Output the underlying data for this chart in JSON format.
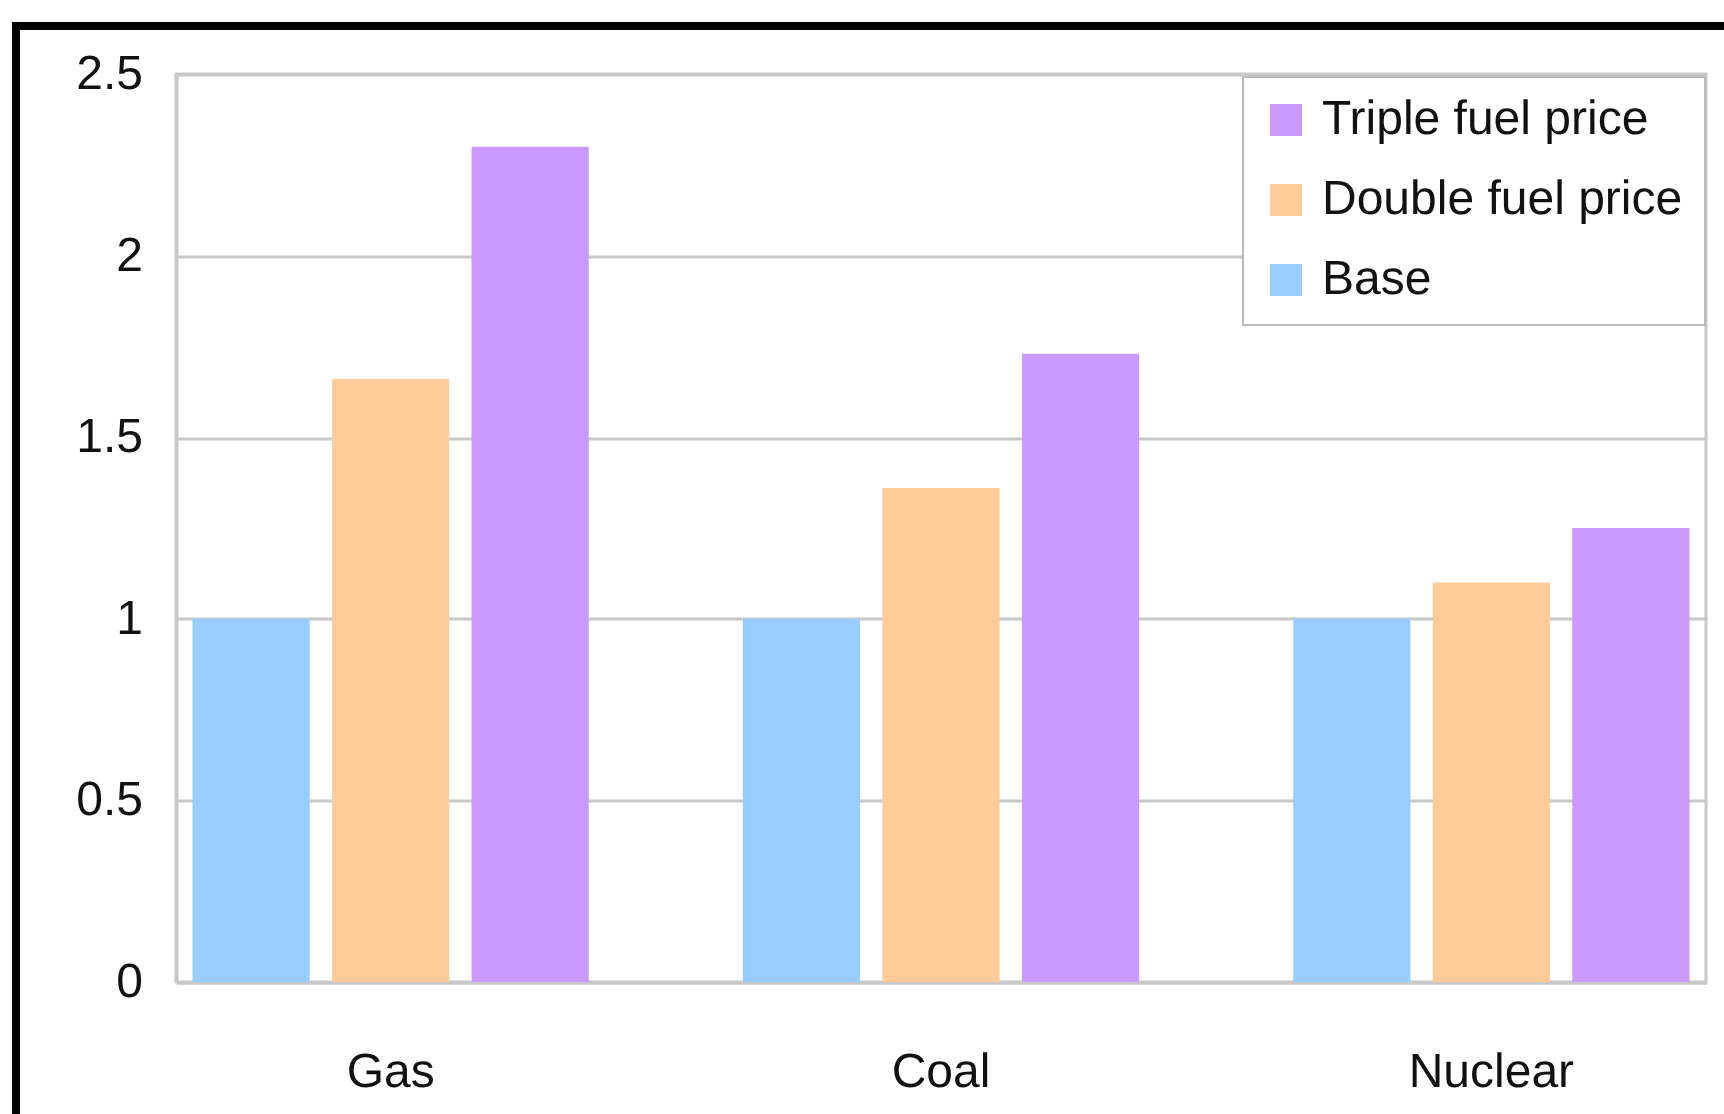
{
  "chart_data": {
    "type": "bar",
    "categories": [
      "Gas",
      "Coal",
      "Nuclear"
    ],
    "series": [
      {
        "name": "Base",
        "color": "#99ccff",
        "values": [
          1,
          1,
          1
        ]
      },
      {
        "name": "Double fuel price",
        "color": "#ffcc99",
        "values": [
          1.66,
          1.36,
          1.1
        ]
      },
      {
        "name": "Triple fuel price",
        "color": "#cc99ff",
        "values": [
          2.3,
          1.73,
          1.25
        ]
      }
    ],
    "ylim": [
      0,
      2.5
    ],
    "yticks": [
      0,
      0.5,
      1,
      1.5,
      2,
      2.5
    ],
    "grid": "y",
    "legend": "top right"
  }
}
